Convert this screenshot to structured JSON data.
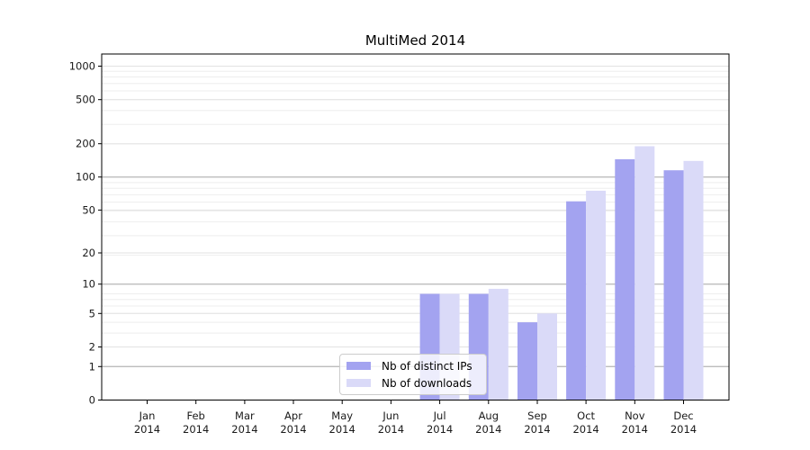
{
  "chart_data": {
    "type": "bar",
    "title": "MultiMed 2014",
    "categories": [
      "Jan",
      "Feb",
      "Mar",
      "Apr",
      "May",
      "Jun",
      "Jul",
      "Aug",
      "Sep",
      "Oct",
      "Nov",
      "Dec"
    ],
    "category_year": "2014",
    "series": [
      {
        "name": "Nb of distinct IPs",
        "color": "#a3a3f0",
        "values": [
          0,
          0,
          0,
          0,
          0,
          0,
          8,
          8,
          4,
          60,
          145,
          115
        ]
      },
      {
        "name": "Nb of downloads",
        "color": "#dadaf8",
        "values": [
          0,
          0,
          0,
          0,
          0,
          0,
          8,
          9,
          5,
          75,
          190,
          140
        ]
      }
    ],
    "yscale": "log10(value+1)",
    "y_ticks": [
      0,
      1,
      2,
      5,
      10,
      20,
      50,
      100,
      200,
      500,
      1000
    ],
    "ylim": [
      0,
      1290
    ],
    "grid": true,
    "legend_position": "lower center-left inside plot"
  },
  "colors": {
    "background": "#ffffff",
    "axis": "#000000",
    "tick_text": "#1a1a1a",
    "grid_minor": "#eeeeee",
    "grid_major": "#e2e2e2",
    "grid_decade": "#bdbdbd"
  }
}
